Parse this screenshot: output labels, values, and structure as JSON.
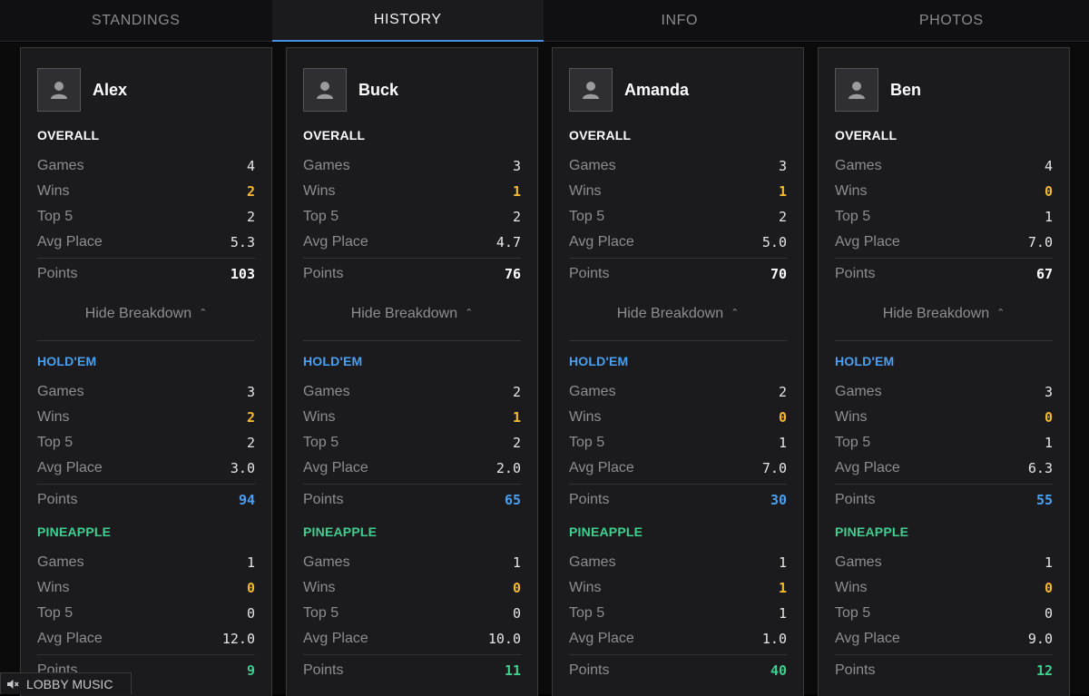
{
  "tabs": [
    "STANDINGS",
    "HISTORY",
    "INFO",
    "PHOTOS"
  ],
  "active_tab": "HISTORY",
  "labels": {
    "games": "Games",
    "wins": "Wins",
    "top5": "Top 5",
    "avg": "Avg Place",
    "points": "Points",
    "breakdown": "Hide Breakdown"
  },
  "sections": {
    "overall": "OVERALL",
    "holdem": "HOLD'EM",
    "pineapple": "PINEAPPLE"
  },
  "players": [
    {
      "name": "Alex",
      "overall": {
        "games": "4",
        "wins": "2",
        "top5": "2",
        "avg": "5.3",
        "points": "103"
      },
      "holdem": {
        "games": "3",
        "wins": "2",
        "top5": "2",
        "avg": "3.0",
        "points": "94"
      },
      "pineapple": {
        "games": "1",
        "wins": "0",
        "top5": "0",
        "avg": "12.0",
        "points": "9"
      }
    },
    {
      "name": "Buck",
      "overall": {
        "games": "3",
        "wins": "1",
        "top5": "2",
        "avg": "4.7",
        "points": "76"
      },
      "holdem": {
        "games": "2",
        "wins": "1",
        "top5": "2",
        "avg": "2.0",
        "points": "65"
      },
      "pineapple": {
        "games": "1",
        "wins": "0",
        "top5": "0",
        "avg": "10.0",
        "points": "11"
      }
    },
    {
      "name": "Amanda",
      "overall": {
        "games": "3",
        "wins": "1",
        "top5": "2",
        "avg": "5.0",
        "points": "70"
      },
      "holdem": {
        "games": "2",
        "wins": "0",
        "top5": "1",
        "avg": "7.0",
        "points": "30"
      },
      "pineapple": {
        "games": "1",
        "wins": "1",
        "top5": "1",
        "avg": "1.0",
        "points": "40"
      }
    },
    {
      "name": "Ben",
      "overall": {
        "games": "4",
        "wins": "0",
        "top5": "1",
        "avg": "7.0",
        "points": "67"
      },
      "holdem": {
        "games": "3",
        "wins": "0",
        "top5": "1",
        "avg": "6.3",
        "points": "55"
      },
      "pineapple": {
        "games": "1",
        "wins": "0",
        "top5": "0",
        "avg": "9.0",
        "points": "12"
      }
    }
  ],
  "footer": {
    "music_label": "LOBBY MUSIC",
    "music_icon": "speaker-muted-icon"
  },
  "colors": {
    "accent_blue": "#4a9ff0",
    "win_yellow": "#f5b82e",
    "pineapple_green": "#3fcf8e",
    "active_tab_underline": "#4a90e2"
  }
}
